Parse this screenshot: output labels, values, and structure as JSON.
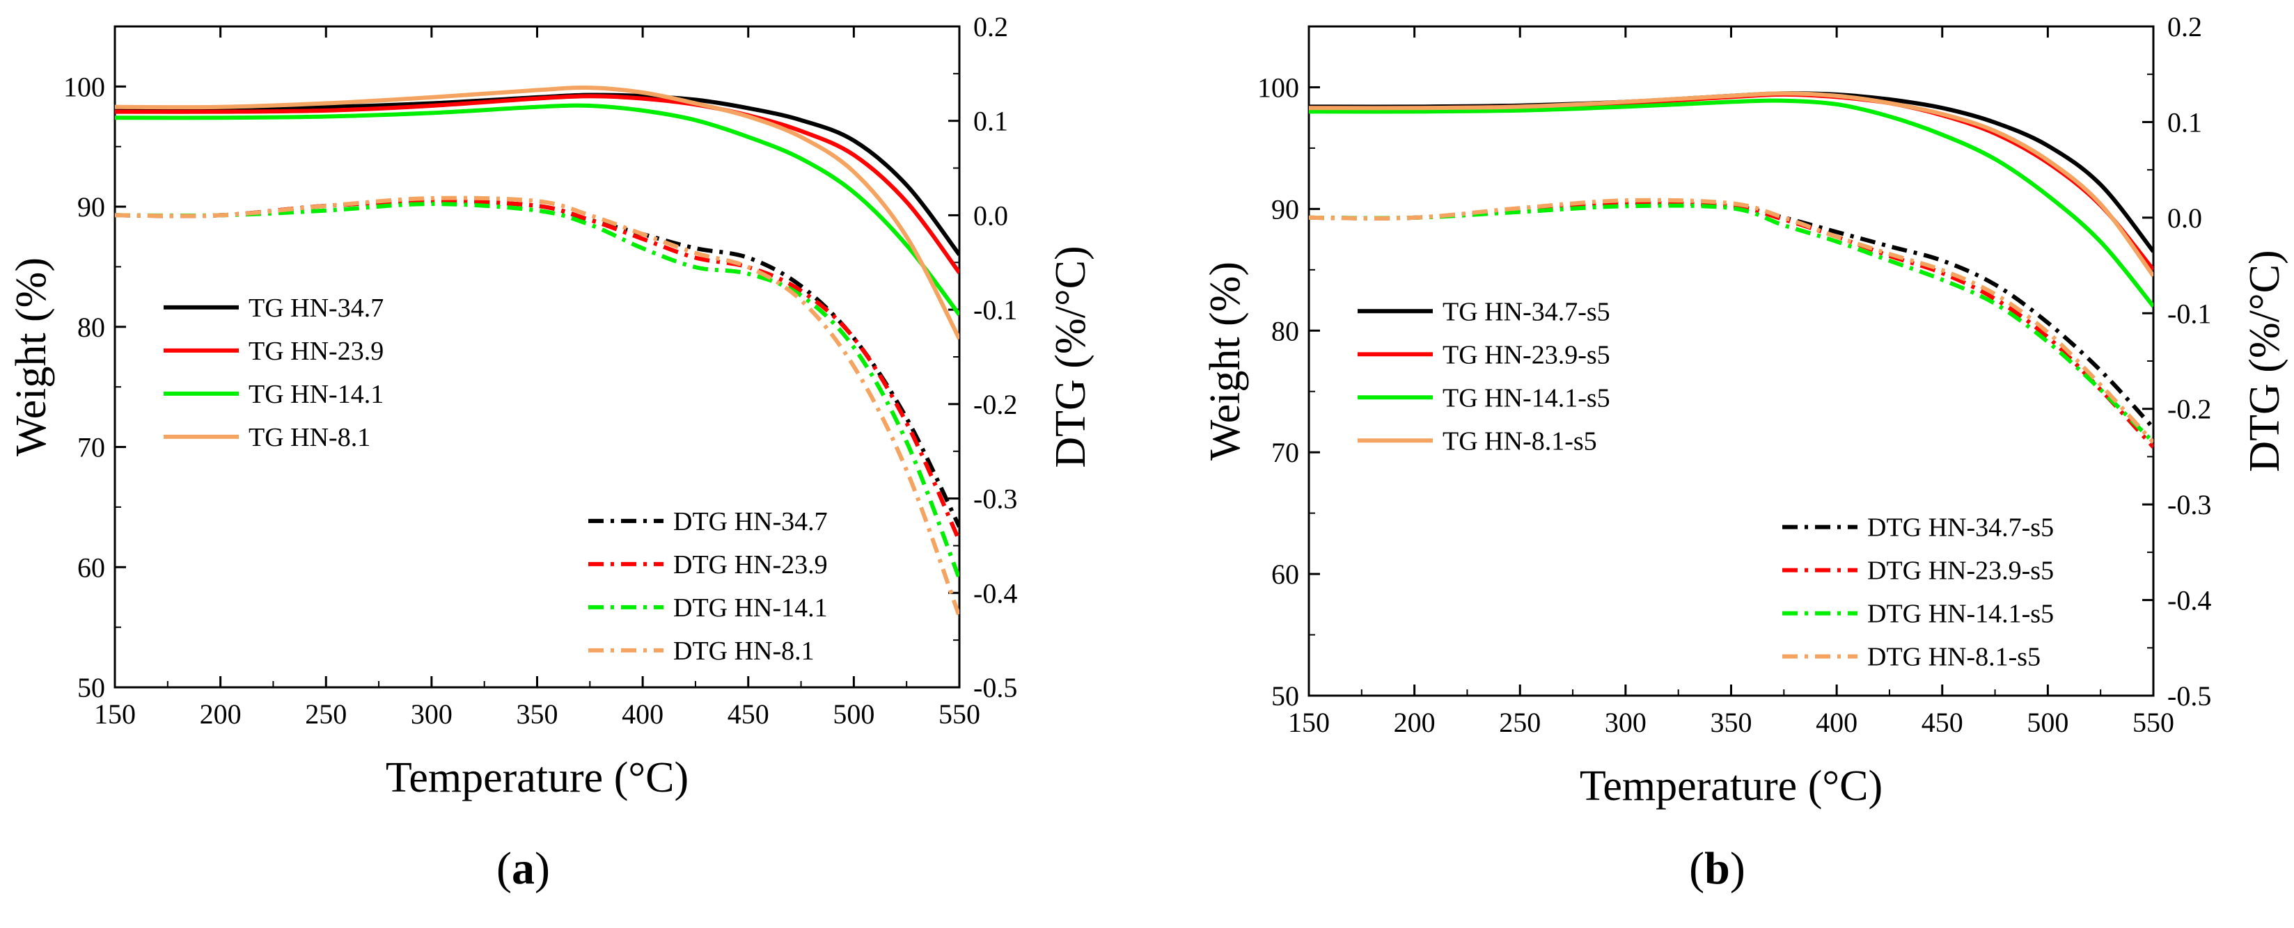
{
  "figure": {
    "panels": [
      "(a)",
      "(b)"
    ]
  },
  "chart_data": [
    {
      "type": "line",
      "panel_label": "(a)",
      "panel_letter": "a",
      "xlabel": "Temperature (°C)",
      "ylabel": "Weight (%)",
      "y2label": "DTG (%/°C)",
      "xlim": [
        150,
        550
      ],
      "ylim": [
        50,
        105
      ],
      "y2lim": [
        -0.5,
        0.2
      ],
      "xticks": [
        150,
        200,
        250,
        300,
        350,
        400,
        450,
        500,
        550
      ],
      "yticks": [
        50,
        60,
        70,
        80,
        90,
        100
      ],
      "y2ticks": [
        "-0.5",
        "-0.4",
        "-0.3",
        "-0.2",
        "-0.1",
        "0.0",
        "0.1",
        "0.2"
      ],
      "legend_tg_position": "middle-left",
      "legend_dtg_position": "bottom-right",
      "series": [
        {
          "name": "TG HN-34.7",
          "axis": "left",
          "style": "solid",
          "color": "#000000",
          "x": [
            150,
            200,
            250,
            300,
            350,
            375,
            400,
            425,
            450,
            475,
            500,
            525,
            550
          ],
          "y": [
            98.2,
            98.2,
            98.3,
            98.6,
            99.1,
            99.3,
            99.2,
            98.9,
            98.2,
            97.2,
            95.5,
            91.8,
            86.0
          ]
        },
        {
          "name": "TG HN-23.9",
          "axis": "left",
          "style": "solid",
          "color": "#ff0000",
          "x": [
            150,
            200,
            250,
            300,
            350,
            375,
            400,
            425,
            450,
            475,
            500,
            525,
            550
          ],
          "y": [
            97.9,
            97.9,
            98.0,
            98.4,
            99.0,
            99.2,
            99.0,
            98.5,
            97.6,
            96.3,
            94.3,
            90.4,
            84.5
          ]
        },
        {
          "name": "TG HN-14.1",
          "axis": "left",
          "style": "solid",
          "color": "#00ee00",
          "x": [
            150,
            200,
            250,
            300,
            350,
            375,
            400,
            425,
            450,
            475,
            500,
            525,
            550
          ],
          "y": [
            97.4,
            97.4,
            97.5,
            97.8,
            98.3,
            98.4,
            98.0,
            97.2,
            95.8,
            94.0,
            91.2,
            86.8,
            81.0
          ]
        },
        {
          "name": "TG HN-8.1",
          "axis": "left",
          "style": "solid",
          "color": "#f4a460",
          "x": [
            150,
            200,
            250,
            300,
            350,
            375,
            400,
            425,
            450,
            475,
            500,
            525,
            550
          ],
          "y": [
            98.3,
            98.3,
            98.6,
            99.1,
            99.7,
            99.9,
            99.5,
            98.6,
            97.5,
            95.8,
            92.9,
            87.5,
            79.0
          ]
        },
        {
          "name": "DTG HN-34.7",
          "axis": "right",
          "style": "dashdot",
          "color": "#000000",
          "x": [
            150,
            200,
            250,
            300,
            350,
            375,
            400,
            425,
            450,
            475,
            500,
            525,
            550
          ],
          "y": [
            0.0,
            0.0,
            0.01,
            0.015,
            0.01,
            -0.005,
            -0.02,
            -0.035,
            -0.045,
            -0.075,
            -0.13,
            -0.215,
            -0.33
          ]
        },
        {
          "name": "DTG HN-23.9",
          "axis": "right",
          "style": "dashdot",
          "color": "#ff0000",
          "x": [
            150,
            200,
            250,
            300,
            350,
            375,
            400,
            425,
            450,
            475,
            500,
            525,
            550
          ],
          "y": [
            0.0,
            0.0,
            0.01,
            0.015,
            0.01,
            -0.005,
            -0.025,
            -0.045,
            -0.055,
            -0.08,
            -0.13,
            -0.22,
            -0.345
          ]
        },
        {
          "name": "DTG HN-14.1",
          "axis": "right",
          "style": "dashdot",
          "color": "#00ee00",
          "x": [
            150,
            200,
            250,
            300,
            350,
            375,
            400,
            425,
            450,
            475,
            500,
            525,
            550
          ],
          "y": [
            0.0,
            0.0,
            0.005,
            0.012,
            0.005,
            -0.01,
            -0.035,
            -0.055,
            -0.062,
            -0.085,
            -0.14,
            -0.24,
            -0.385
          ]
        },
        {
          "name": "DTG HN-8.1",
          "axis": "right",
          "style": "dashdot",
          "color": "#f4a460",
          "x": [
            150,
            200,
            250,
            300,
            350,
            375,
            400,
            425,
            450,
            475,
            500,
            525,
            550
          ],
          "y": [
            0.0,
            0.0,
            0.01,
            0.018,
            0.015,
            0.0,
            -0.02,
            -0.04,
            -0.055,
            -0.09,
            -0.16,
            -0.27,
            -0.425
          ]
        }
      ]
    },
    {
      "type": "line",
      "panel_label": "(b)",
      "panel_letter": "b",
      "xlabel": "Temperature (°C)",
      "ylabel": "Weight (%)",
      "y2label": "DTG (%/°C)",
      "xlim": [
        150,
        550
      ],
      "ylim": [
        50,
        105
      ],
      "y2lim": [
        -0.5,
        0.2
      ],
      "xticks": [
        150,
        200,
        250,
        300,
        350,
        400,
        450,
        500,
        550
      ],
      "yticks": [
        50,
        60,
        70,
        80,
        90,
        100
      ],
      "y2ticks": [
        "-0.5",
        "-0.4",
        "-0.3",
        "-0.2",
        "-0.1",
        "0.0",
        "0.1",
        "0.2"
      ],
      "legend_tg_position": "middle-left",
      "legend_dtg_position": "bottom-right",
      "series": [
        {
          "name": "TG HN-34.7-s5",
          "axis": "left",
          "style": "solid",
          "color": "#000000",
          "x": [
            150,
            200,
            250,
            300,
            350,
            375,
            400,
            425,
            450,
            475,
            500,
            525,
            550
          ],
          "y": [
            98.4,
            98.4,
            98.5,
            98.8,
            99.3,
            99.5,
            99.4,
            99.0,
            98.3,
            97.1,
            95.2,
            92.0,
            86.5
          ]
        },
        {
          "name": "TG HN-23.9-s5",
          "axis": "left",
          "style": "solid",
          "color": "#ff0000",
          "x": [
            150,
            200,
            250,
            300,
            350,
            375,
            400,
            425,
            450,
            475,
            500,
            525,
            550
          ],
          "y": [
            98.3,
            98.3,
            98.4,
            98.7,
            99.2,
            99.4,
            99.2,
            98.7,
            97.7,
            96.2,
            93.8,
            90.3,
            85.0
          ]
        },
        {
          "name": "TG HN-14.1-s5",
          "axis": "left",
          "style": "solid",
          "color": "#00ee00",
          "x": [
            150,
            200,
            250,
            300,
            350,
            375,
            400,
            425,
            450,
            475,
            500,
            525,
            550
          ],
          "y": [
            98.0,
            98.0,
            98.1,
            98.4,
            98.8,
            98.9,
            98.6,
            97.6,
            96.1,
            94.1,
            91.1,
            87.3,
            82.0
          ]
        },
        {
          "name": "TG HN-8.1-s5",
          "axis": "left",
          "style": "solid",
          "color": "#f4a460",
          "x": [
            150,
            200,
            250,
            300,
            350,
            375,
            400,
            425,
            450,
            475,
            500,
            525,
            550
          ],
          "y": [
            98.3,
            98.3,
            98.4,
            98.8,
            99.3,
            99.5,
            99.3,
            98.7,
            97.8,
            96.4,
            94.0,
            90.4,
            84.5
          ]
        },
        {
          "name": "DTG HN-34.7-s5",
          "axis": "right",
          "style": "dashdot",
          "color": "#000000",
          "x": [
            150,
            200,
            250,
            300,
            350,
            375,
            400,
            425,
            450,
            475,
            500,
            525,
            550
          ],
          "y": [
            0.0,
            0.0,
            0.008,
            0.015,
            0.012,
            0.0,
            -0.015,
            -0.03,
            -0.045,
            -0.07,
            -0.11,
            -0.16,
            -0.22
          ]
        },
        {
          "name": "DTG HN-23.9-s5",
          "axis": "right",
          "style": "dashdot",
          "color": "#ff0000",
          "x": [
            150,
            200,
            250,
            300,
            350,
            375,
            400,
            425,
            450,
            475,
            500,
            525,
            550
          ],
          "y": [
            0.0,
            0.0,
            0.008,
            0.015,
            0.012,
            -0.002,
            -0.02,
            -0.04,
            -0.058,
            -0.085,
            -0.125,
            -0.18,
            -0.24
          ]
        },
        {
          "name": "DTG HN-14.1-s5",
          "axis": "right",
          "style": "dashdot",
          "color": "#00ee00",
          "x": [
            150,
            200,
            250,
            300,
            350,
            375,
            400,
            425,
            450,
            475,
            500,
            525,
            550
          ],
          "y": [
            0.0,
            0.0,
            0.006,
            0.012,
            0.01,
            -0.008,
            -0.025,
            -0.045,
            -0.065,
            -0.09,
            -0.13,
            -0.18,
            -0.235
          ]
        },
        {
          "name": "DTG HN-8.1-s5",
          "axis": "right",
          "style": "dashdot",
          "color": "#f4a460",
          "x": [
            150,
            200,
            250,
            300,
            350,
            375,
            400,
            425,
            450,
            475,
            500,
            525,
            550
          ],
          "y": [
            0.0,
            0.0,
            0.01,
            0.018,
            0.015,
            0.0,
            -0.02,
            -0.038,
            -0.055,
            -0.08,
            -0.12,
            -0.175,
            -0.235
          ]
        }
      ]
    }
  ]
}
